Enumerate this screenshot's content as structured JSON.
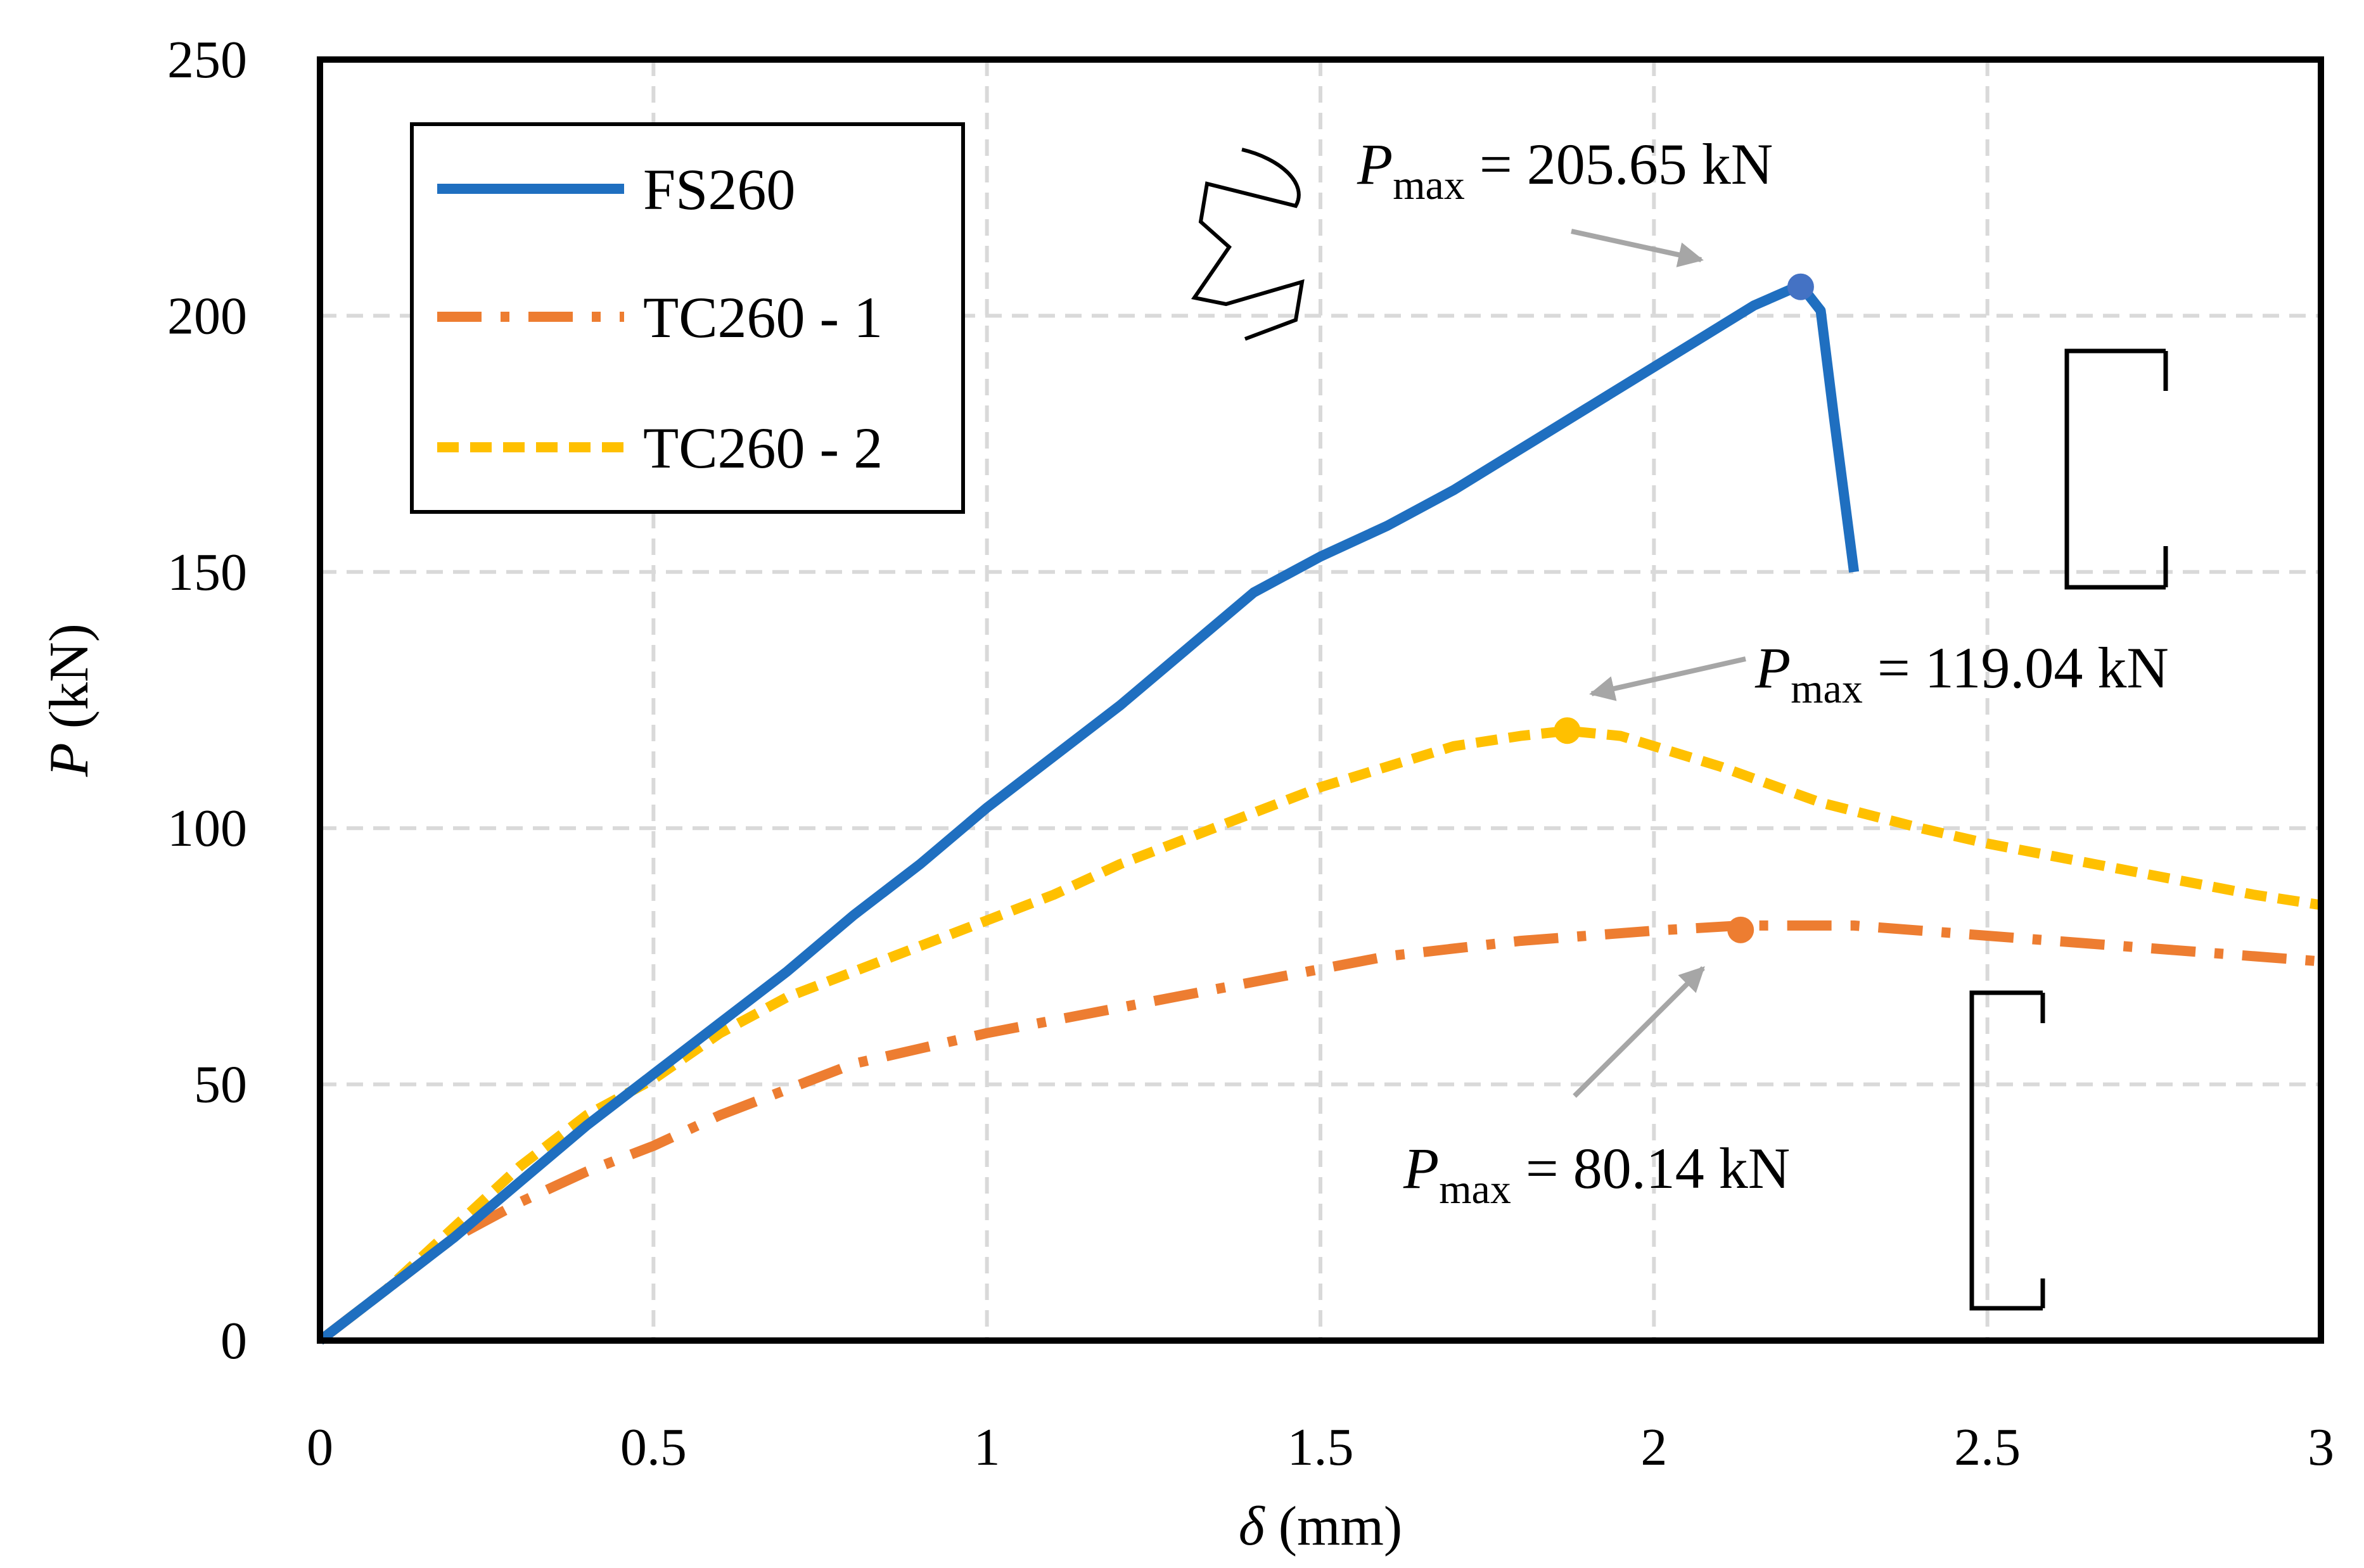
{
  "chart_data": {
    "type": "line",
    "xlabel": {
      "symbol": "δ",
      "rest": " (mm)"
    },
    "ylabel": {
      "symbol": "P",
      "rest": " (kN)"
    },
    "xlim": [
      0,
      3
    ],
    "ylim": [
      0,
      250
    ],
    "x_ticks": [
      "0",
      "0.5",
      "1",
      "1.5",
      "2",
      "2.5",
      "3"
    ],
    "y_ticks": [
      "0",
      "50",
      "100",
      "150",
      "200",
      "250"
    ],
    "grid": true,
    "legend_position": "top-left",
    "series": [
      {
        "name": "FS260",
        "color": "#1F6FC0",
        "style": "solid",
        "points": [
          [
            0,
            0
          ],
          [
            0.1,
            10
          ],
          [
            0.2,
            20
          ],
          [
            0.3,
            31
          ],
          [
            0.4,
            42
          ],
          [
            0.5,
            52
          ],
          [
            0.6,
            62
          ],
          [
            0.7,
            72
          ],
          [
            0.8,
            83
          ],
          [
            0.9,
            93
          ],
          [
            1.0,
            104
          ],
          [
            1.1,
            114
          ],
          [
            1.2,
            124
          ],
          [
            1.3,
            135
          ],
          [
            1.4,
            146
          ],
          [
            1.5,
            153
          ],
          [
            1.6,
            159
          ],
          [
            1.7,
            166
          ],
          [
            1.8,
            174
          ],
          [
            1.9,
            182
          ],
          [
            2.0,
            190
          ],
          [
            2.1,
            198
          ],
          [
            2.15,
            202
          ],
          [
            2.22,
            206
          ],
          [
            2.25,
            201
          ],
          [
            2.27,
            180
          ],
          [
            2.29,
            160
          ],
          [
            2.3,
            150
          ]
        ],
        "peak": {
          "x": 2.22,
          "y": 205.65,
          "marker_color": "#4472C4"
        }
      },
      {
        "name": "TC260 - 1",
        "color": "#ED7D31",
        "style": "dashdot",
        "points": [
          [
            0,
            0
          ],
          [
            0.1,
            10
          ],
          [
            0.2,
            20
          ],
          [
            0.3,
            27
          ],
          [
            0.4,
            33
          ],
          [
            0.5,
            38
          ],
          [
            0.6,
            44
          ],
          [
            0.7,
            49
          ],
          [
            0.8,
            54
          ],
          [
            0.9,
            57
          ],
          [
            1.0,
            60
          ],
          [
            1.2,
            65
          ],
          [
            1.4,
            70
          ],
          [
            1.6,
            75
          ],
          [
            1.8,
            78
          ],
          [
            2.0,
            80
          ],
          [
            2.13,
            81
          ],
          [
            2.3,
            81
          ],
          [
            2.5,
            79
          ],
          [
            2.7,
            77
          ],
          [
            2.9,
            75
          ],
          [
            3.0,
            74
          ]
        ],
        "peak": {
          "x": 2.13,
          "y": 80.14,
          "marker_color": "#ED7D31"
        }
      },
      {
        "name": "TC260 - 2",
        "color": "#FFC000",
        "style": "dashed",
        "points": [
          [
            0,
            0
          ],
          [
            0.1,
            10
          ],
          [
            0.2,
            22
          ],
          [
            0.3,
            34
          ],
          [
            0.4,
            44
          ],
          [
            0.5,
            51
          ],
          [
            0.6,
            60
          ],
          [
            0.7,
            67
          ],
          [
            0.8,
            72
          ],
          [
            0.9,
            77
          ],
          [
            1.0,
            82
          ],
          [
            1.1,
            87
          ],
          [
            1.2,
            93
          ],
          [
            1.3,
            98
          ],
          [
            1.4,
            103
          ],
          [
            1.5,
            108
          ],
          [
            1.6,
            112
          ],
          [
            1.7,
            116
          ],
          [
            1.8,
            118
          ],
          [
            1.87,
            119
          ],
          [
            1.95,
            118
          ],
          [
            2.1,
            112
          ],
          [
            2.25,
            105
          ],
          [
            2.4,
            100
          ],
          [
            2.5,
            97
          ],
          [
            2.7,
            92
          ],
          [
            2.9,
            87
          ],
          [
            3.0,
            85
          ]
        ],
        "peak": {
          "x": 1.87,
          "y": 119.04,
          "marker_color": "#FFC000"
        }
      }
    ],
    "annotations": [
      {
        "symbol": "P",
        "subscript": "max",
        "text": " = 205.65 kN"
      },
      {
        "symbol": "P",
        "subscript": "max",
        "text": " = 119.04 kN"
      },
      {
        "symbol": "P",
        "subscript": "max",
        "text": " = 80.14 kN"
      }
    ]
  }
}
